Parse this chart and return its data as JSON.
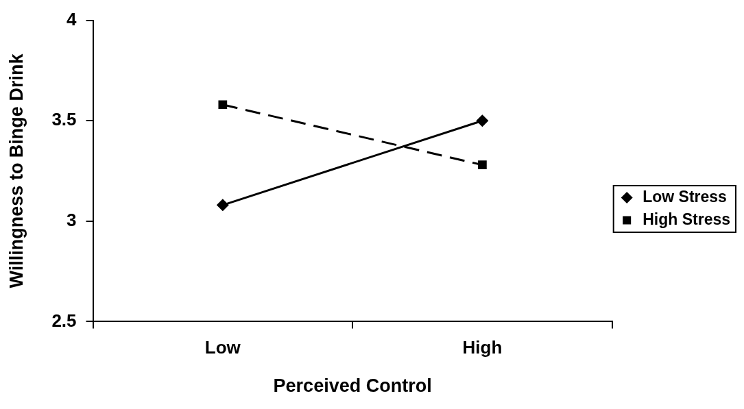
{
  "chart_data": {
    "type": "line",
    "xlabel": "Perceived Control",
    "ylabel": "Willingness to Binge Drink",
    "categories": [
      "Low",
      "High"
    ],
    "series": [
      {
        "name": "Low Stress",
        "color": "#000000",
        "values": [
          3.08,
          3.5
        ],
        "marker": "diamond",
        "line_style": "solid"
      },
      {
        "name": "High Stress",
        "color": "#000000",
        "values": [
          3.58,
          3.28
        ],
        "marker": "square",
        "line_style": "dashed"
      }
    ],
    "ylim": [
      2.5,
      4
    ],
    "yticks": [
      2.5,
      3,
      3.5,
      4
    ],
    "grid": false,
    "legend": "right"
  }
}
